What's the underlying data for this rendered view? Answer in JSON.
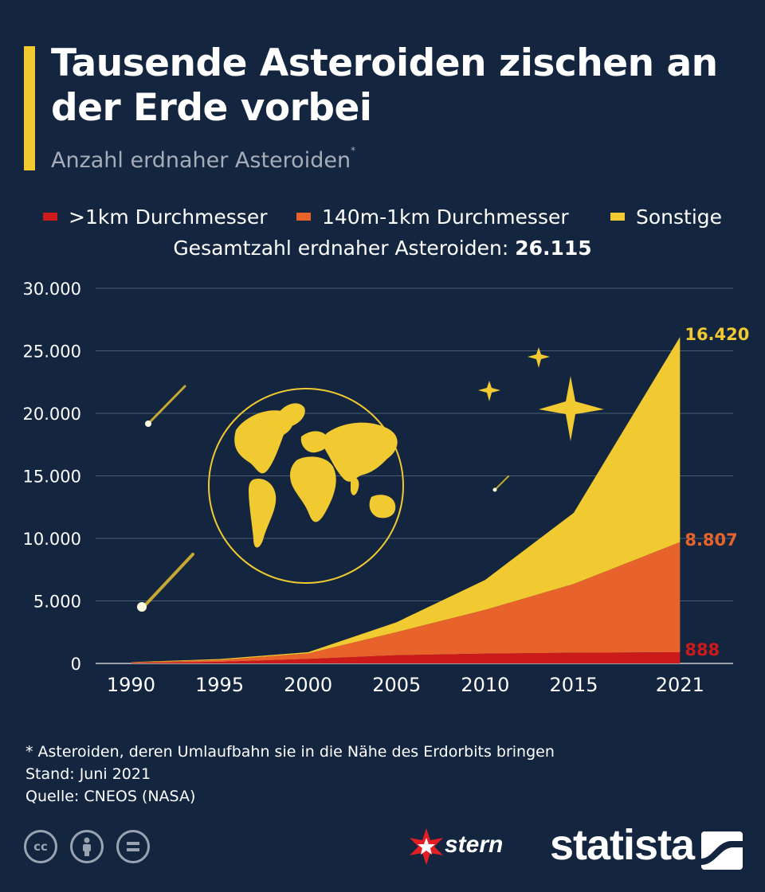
{
  "header": {
    "title": "Tausende Asteroiden zischen an der Erde vorbei",
    "subtitle": "Anzahl erdnaher Asteroiden",
    "subtitle_marker": "*"
  },
  "legend": [
    {
      "label": ">1km Durchmesser",
      "color": "#cc1a1a"
    },
    {
      "label": "140m-1km Durchmesser",
      "color": "#e8632c"
    },
    {
      "label": "Sonstige",
      "color": "#f1c930"
    }
  ],
  "total": {
    "label": "Gesamtzahl erdnaher Asteroiden:",
    "value": "26.115"
  },
  "chart_data": {
    "type": "area",
    "stacked": true,
    "x": [
      1990,
      1995,
      2000,
      2005,
      2010,
      2015,
      2021
    ],
    "x_tick_labels": [
      "1990",
      "1995",
      "2000",
      "2005",
      "2010",
      "2015",
      "2021"
    ],
    "ylim": [
      0,
      30000
    ],
    "y_ticks": [
      0,
      5000,
      10000,
      15000,
      20000,
      25000,
      30000
    ],
    "y_tick_labels": [
      "0",
      "5.000",
      "10.000",
      "15.000",
      "20.000",
      "25.000",
      "30.000"
    ],
    "grid": true,
    "series": [
      {
        "name": ">1km Durchmesser",
        "color": "#cc1a1a",
        "values": [
          30,
          120,
          350,
          650,
          780,
          850,
          888
        ]
      },
      {
        "name": "140m-1km Durchmesser",
        "color": "#e8632c",
        "values": [
          50,
          150,
          450,
          1850,
          3500,
          5500,
          8807
        ]
      },
      {
        "name": "Sonstige",
        "color": "#f1c930",
        "values": [
          20,
          80,
          100,
          800,
          2400,
          5700,
          16420
        ]
      }
    ],
    "end_labels": [
      {
        "series": "Sonstige",
        "text": "16.420",
        "color": "#f1c930"
      },
      {
        "series": "140m-1km Durchmesser",
        "text": "8.807",
        "color": "#e8632c"
      },
      {
        "series": ">1km Durchmesser",
        "text": "888",
        "color": "#cc1a1a"
      }
    ]
  },
  "notes": {
    "footnote": "* Asteroiden, deren Umlaufbahn sie in die Nähe des Erdorbits bringen",
    "date": "Stand: Juni 2021",
    "source": "Quelle: CNEOS (NASA)"
  },
  "branding": {
    "stern": "stern",
    "statista": "statista"
  },
  "icons": [
    "cc-icon",
    "attribution-icon",
    "no-derivatives-icon",
    "globe-icon",
    "meteor-icon",
    "star-icon"
  ]
}
